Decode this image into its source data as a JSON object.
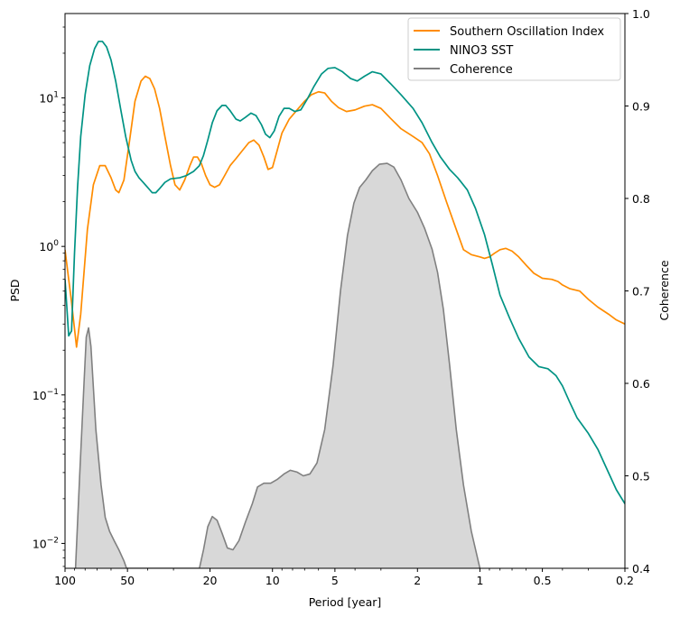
{
  "chart_data": {
    "type": "line",
    "title": "",
    "xlabel": "Period [year]",
    "ylabel": "PSD",
    "y2label": "Coherence",
    "x_scale": "log",
    "x_reversed": true,
    "xlim": [
      100,
      0.2
    ],
    "y_scale": "log",
    "ylim": [
      0.0068,
      37
    ],
    "y2lim": [
      0.4,
      1.0
    ],
    "x_tick_labels": [
      "100",
      "50",
      "20",
      "10",
      "5",
      "2",
      "1",
      "0.5",
      "0.2"
    ],
    "x_tick_values": [
      100,
      50,
      20,
      10,
      5,
      2,
      1,
      0.5,
      0.2
    ],
    "y_tick_labels": [
      "10^-2",
      "10^-1",
      "10^0",
      "10^1"
    ],
    "y_tick_values": [
      0.01,
      0.1,
      1,
      10
    ],
    "y2_tick_labels": [
      "0.4",
      "0.5",
      "0.6",
      "0.7",
      "0.8",
      "0.9",
      "1.0"
    ],
    "y2_tick_values": [
      0.4,
      0.5,
      0.6,
      0.7,
      0.8,
      0.9,
      1.0
    ],
    "legend_position": "top-right",
    "grid": false,
    "series": [
      {
        "name": "Southern Oscillation Index",
        "axis": "left",
        "color": "#ff8c00",
        "points": [
          [
            100,
            0.95
          ],
          [
            93,
            0.42
          ],
          [
            88,
            0.21
          ],
          [
            84,
            0.35
          ],
          [
            78,
            1.3
          ],
          [
            73,
            2.6
          ],
          [
            68,
            3.5
          ],
          [
            64,
            3.5
          ],
          [
            60,
            2.9
          ],
          [
            57,
            2.4
          ],
          [
            55,
            2.3
          ],
          [
            52,
            2.8
          ],
          [
            49,
            5.0
          ],
          [
            46,
            9.5
          ],
          [
            43,
            13.0
          ],
          [
            41,
            14.0
          ],
          [
            39,
            13.5
          ],
          [
            37,
            11.5
          ],
          [
            35,
            8.5
          ],
          [
            33,
            5.5
          ],
          [
            31,
            3.5
          ],
          [
            29.5,
            2.6
          ],
          [
            28,
            2.4
          ],
          [
            26.5,
            2.8
          ],
          [
            25,
            3.5
          ],
          [
            24,
            4.0
          ],
          [
            23,
            4.0
          ],
          [
            22,
            3.6
          ],
          [
            21,
            3.0
          ],
          [
            20,
            2.6
          ],
          [
            19,
            2.5
          ],
          [
            18,
            2.6
          ],
          [
            17,
            3.0
          ],
          [
            16,
            3.5
          ],
          [
            15,
            3.9
          ],
          [
            14,
            4.4
          ],
          [
            13,
            5.0
          ],
          [
            12.3,
            5.2
          ],
          [
            11.6,
            4.8
          ],
          [
            11,
            4.0
          ],
          [
            10.5,
            3.3
          ],
          [
            10,
            3.4
          ],
          [
            9.5,
            4.4
          ],
          [
            9,
            5.8
          ],
          [
            8.3,
            7.2
          ],
          [
            7.5,
            8.5
          ],
          [
            7,
            9.5
          ],
          [
            6.5,
            10.5
          ],
          [
            6,
            11.0
          ],
          [
            5.6,
            10.8
          ],
          [
            5.2,
            9.5
          ],
          [
            4.8,
            8.6
          ],
          [
            4.4,
            8.1
          ],
          [
            4.0,
            8.3
          ],
          [
            3.6,
            8.8
          ],
          [
            3.3,
            9.0
          ],
          [
            3.0,
            8.5
          ],
          [
            2.7,
            7.3
          ],
          [
            2.4,
            6.2
          ],
          [
            2.1,
            5.5
          ],
          [
            1.9,
            5.0
          ],
          [
            1.75,
            4.2
          ],
          [
            1.6,
            3.0
          ],
          [
            1.45,
            2.0
          ],
          [
            1.3,
            1.3
          ],
          [
            1.2,
            0.95
          ],
          [
            1.1,
            0.88
          ],
          [
            1.0,
            0.85
          ],
          [
            0.95,
            0.83
          ],
          [
            0.9,
            0.85
          ],
          [
            0.85,
            0.9
          ],
          [
            0.8,
            0.95
          ],
          [
            0.75,
            0.97
          ],
          [
            0.7,
            0.93
          ],
          [
            0.65,
            0.85
          ],
          [
            0.6,
            0.75
          ],
          [
            0.55,
            0.66
          ],
          [
            0.5,
            0.61
          ],
          [
            0.45,
            0.6
          ],
          [
            0.42,
            0.58
          ],
          [
            0.4,
            0.55
          ],
          [
            0.37,
            0.52
          ],
          [
            0.33,
            0.5
          ],
          [
            0.3,
            0.44
          ],
          [
            0.27,
            0.39
          ],
          [
            0.24,
            0.35
          ],
          [
            0.22,
            0.32
          ],
          [
            0.2,
            0.3
          ]
        ]
      },
      {
        "name": "NINO3 SST",
        "axis": "left",
        "color": "#009384",
        "points": [
          [
            100,
            0.6
          ],
          [
            96,
            0.25
          ],
          [
            93,
            0.27
          ],
          [
            90,
            0.9
          ],
          [
            87,
            2.5
          ],
          [
            84,
            5.5
          ],
          [
            80,
            10.5
          ],
          [
            76,
            16.5
          ],
          [
            72,
            21.5
          ],
          [
            69,
            24.0
          ],
          [
            66,
            24.0
          ],
          [
            63,
            22.0
          ],
          [
            60,
            18.0
          ],
          [
            57,
            13.0
          ],
          [
            54,
            8.5
          ],
          [
            51,
            5.5
          ],
          [
            48,
            3.8
          ],
          [
            46,
            3.2
          ],
          [
            44,
            2.9
          ],
          [
            42,
            2.7
          ],
          [
            40,
            2.5
          ],
          [
            38,
            2.3
          ],
          [
            36.5,
            2.3
          ],
          [
            35,
            2.45
          ],
          [
            33,
            2.7
          ],
          [
            31,
            2.85
          ],
          [
            28,
            2.9
          ],
          [
            26,
            3.0
          ],
          [
            24,
            3.2
          ],
          [
            22.5,
            3.5
          ],
          [
            21.5,
            4.1
          ],
          [
            20.5,
            5.2
          ],
          [
            19.5,
            6.8
          ],
          [
            18.5,
            8.2
          ],
          [
            17.5,
            8.9
          ],
          [
            16.8,
            8.9
          ],
          [
            16,
            8.2
          ],
          [
            15,
            7.2
          ],
          [
            14.3,
            7.0
          ],
          [
            13.5,
            7.4
          ],
          [
            12.7,
            7.9
          ],
          [
            12,
            7.6
          ],
          [
            11.3,
            6.6
          ],
          [
            10.8,
            5.7
          ],
          [
            10.3,
            5.4
          ],
          [
            9.8,
            6.0
          ],
          [
            9.3,
            7.5
          ],
          [
            8.8,
            8.5
          ],
          [
            8.3,
            8.5
          ],
          [
            7.8,
            8.1
          ],
          [
            7.3,
            8.3
          ],
          [
            6.8,
            9.8
          ],
          [
            6.3,
            12.0
          ],
          [
            5.8,
            14.5
          ],
          [
            5.4,
            15.8
          ],
          [
            5.0,
            16.0
          ],
          [
            4.6,
            15.0
          ],
          [
            4.2,
            13.5
          ],
          [
            3.9,
            13.0
          ],
          [
            3.6,
            14.0
          ],
          [
            3.3,
            15.0
          ],
          [
            3.0,
            14.5
          ],
          [
            2.7,
            12.5
          ],
          [
            2.4,
            10.5
          ],
          [
            2.1,
            8.5
          ],
          [
            1.9,
            6.8
          ],
          [
            1.7,
            5.0
          ],
          [
            1.55,
            4.0
          ],
          [
            1.4,
            3.3
          ],
          [
            1.28,
            2.9
          ],
          [
            1.15,
            2.4
          ],
          [
            1.05,
            1.8
          ],
          [
            0.95,
            1.2
          ],
          [
            0.87,
            0.75
          ],
          [
            0.8,
            0.47
          ],
          [
            0.72,
            0.33
          ],
          [
            0.65,
            0.24
          ],
          [
            0.58,
            0.18
          ],
          [
            0.52,
            0.155
          ],
          [
            0.47,
            0.15
          ],
          [
            0.43,
            0.135
          ],
          [
            0.4,
            0.115
          ],
          [
            0.37,
            0.09
          ],
          [
            0.34,
            0.07
          ],
          [
            0.3,
            0.055
          ],
          [
            0.27,
            0.043
          ],
          [
            0.24,
            0.03
          ],
          [
            0.22,
            0.023
          ],
          [
            0.2,
            0.0185
          ]
        ]
      },
      {
        "name": "Coherence",
        "axis": "right",
        "color": "#808080",
        "fill": "#d8d8d8",
        "points": [
          [
            89,
            0.4
          ],
          [
            85,
            0.5
          ],
          [
            81,
            0.6
          ],
          [
            79,
            0.65
          ],
          [
            77,
            0.66
          ],
          [
            75,
            0.64
          ],
          [
            71,
            0.55
          ],
          [
            67,
            0.49
          ],
          [
            64,
            0.455
          ],
          [
            61,
            0.44
          ],
          [
            58,
            0.43
          ],
          [
            55,
            0.42
          ],
          [
            52,
            0.408
          ],
          [
            50.5,
            0.4
          ],
          [
            22.5,
            0.4
          ],
          [
            21.5,
            0.42
          ],
          [
            20.5,
            0.445
          ],
          [
            19.5,
            0.456
          ],
          [
            18.5,
            0.452
          ],
          [
            17.5,
            0.438
          ],
          [
            16.5,
            0.422
          ],
          [
            15.5,
            0.42
          ],
          [
            14.5,
            0.43
          ],
          [
            13.5,
            0.45
          ],
          [
            12.5,
            0.47
          ],
          [
            11.8,
            0.488
          ],
          [
            11,
            0.492
          ],
          [
            10.2,
            0.492
          ],
          [
            9.5,
            0.496
          ],
          [
            8.8,
            0.502
          ],
          [
            8.2,
            0.506
          ],
          [
            7.6,
            0.504
          ],
          [
            7.1,
            0.5
          ],
          [
            6.6,
            0.502
          ],
          [
            6.1,
            0.514
          ],
          [
            5.6,
            0.55
          ],
          [
            5.1,
            0.62
          ],
          [
            4.7,
            0.7
          ],
          [
            4.35,
            0.76
          ],
          [
            4.05,
            0.795
          ],
          [
            3.8,
            0.812
          ],
          [
            3.55,
            0.82
          ],
          [
            3.3,
            0.83
          ],
          [
            3.05,
            0.837
          ],
          [
            2.8,
            0.838
          ],
          [
            2.6,
            0.834
          ],
          [
            2.4,
            0.82
          ],
          [
            2.2,
            0.8
          ],
          [
            2.0,
            0.785
          ],
          [
            1.85,
            0.768
          ],
          [
            1.7,
            0.745
          ],
          [
            1.6,
            0.72
          ],
          [
            1.5,
            0.68
          ],
          [
            1.4,
            0.62
          ],
          [
            1.3,
            0.55
          ],
          [
            1.2,
            0.49
          ],
          [
            1.1,
            0.44
          ],
          [
            1.0,
            0.4
          ]
        ]
      }
    ]
  }
}
